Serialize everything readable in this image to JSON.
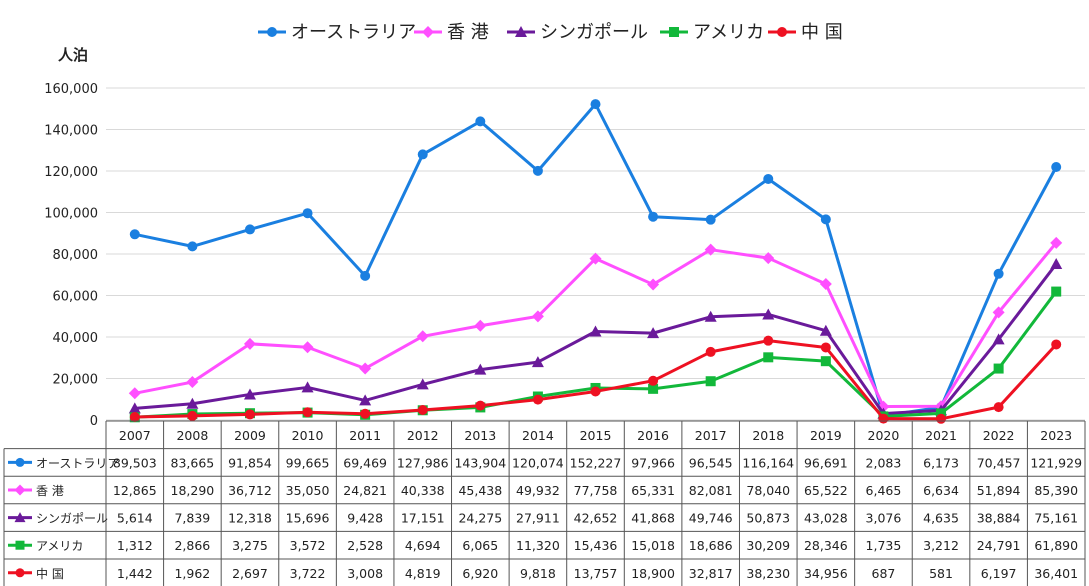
{
  "chart_data": {
    "type": "line",
    "unit_label": "人泊",
    "categories": [
      "2007",
      "2008",
      "2009",
      "2010",
      "2011",
      "2012",
      "2013",
      "2014",
      "2015",
      "2016",
      "2017",
      "2018",
      "2019",
      "2020",
      "2021",
      "2022",
      "2023"
    ],
    "ylim": [
      0,
      160000
    ],
    "yticks": [
      "0",
      "20,000",
      "40,000",
      "60,000",
      "80,000",
      "100,000",
      "120,000",
      "140,000",
      "160,000"
    ],
    "ytick_values": [
      0,
      20000,
      40000,
      60000,
      80000,
      100000,
      120000,
      140000,
      160000
    ],
    "grid": true,
    "legend_position": "top",
    "series": [
      {
        "name": "オーストラリア",
        "table_name": "オーストラリア",
        "color": "#1a7fe0",
        "marker": "circle",
        "values": [
          89503,
          83665,
          91854,
          99665,
          69469,
          127986,
          143904,
          120074,
          152227,
          97966,
          96545,
          116164,
          96691,
          2083,
          6173,
          70457,
          121929
        ],
        "labels": [
          "89,503",
          "83,665",
          "91,854",
          "99,665",
          "69,469",
          "127,986",
          "143,904",
          "120,074",
          "152,227",
          "97,966",
          "96,545",
          "116,164",
          "96,691",
          "2,083",
          "6,173",
          "70,457",
          "121,929"
        ]
      },
      {
        "name": "香 港",
        "table_name": "香 港",
        "color": "#ff4fff",
        "marker": "diamond",
        "values": [
          12865,
          18290,
          36712,
          35050,
          24821,
          40338,
          45438,
          49932,
          77758,
          65331,
          82081,
          78040,
          65522,
          6465,
          6634,
          51894,
          85390
        ],
        "labels": [
          "12,865",
          "18,290",
          "36,712",
          "35,050",
          "24,821",
          "40,338",
          "45,438",
          "49,932",
          "77,758",
          "65,331",
          "82,081",
          "78,040",
          "65,522",
          "6,465",
          "6,634",
          "51,894",
          "85,390"
        ]
      },
      {
        "name": "シンガポール",
        "table_name": "シンガポール",
        "color": "#6a1a9a",
        "marker": "triangle",
        "values": [
          5614,
          7839,
          12318,
          15696,
          9428,
          17151,
          24275,
          27911,
          42652,
          41868,
          49746,
          50873,
          43028,
          3076,
          4635,
          38884,
          75161
        ],
        "labels": [
          "5,614",
          "7,839",
          "12,318",
          "15,696",
          "9,428",
          "17,151",
          "24,275",
          "27,911",
          "42,652",
          "41,868",
          "49,746",
          "50,873",
          "43,028",
          "3,076",
          "4,635",
          "38,884",
          "75,161"
        ]
      },
      {
        "name": "アメリカ",
        "table_name": "アメリカ",
        "color": "#12b83a",
        "marker": "square",
        "values": [
          1312,
          2866,
          3275,
          3572,
          2528,
          4694,
          6065,
          11320,
          15436,
          15018,
          18686,
          30209,
          28346,
          1735,
          3212,
          24791,
          61890
        ],
        "labels": [
          "1,312",
          "2,866",
          "3,275",
          "3,572",
          "2,528",
          "4,694",
          "6,065",
          "11,320",
          "15,436",
          "15,018",
          "18,686",
          "30,209",
          "28,346",
          "1,735",
          "3,212",
          "24,791",
          "61,890"
        ]
      },
      {
        "name": "中 国",
        "table_name": "中 国",
        "color": "#ee1122",
        "marker": "circle",
        "values": [
          1442,
          1962,
          2697,
          3722,
          3008,
          4819,
          6920,
          9818,
          13757,
          18900,
          32817,
          38230,
          34956,
          687,
          581,
          6197,
          36401
        ],
        "labels": [
          "1,442",
          "1,962",
          "2,697",
          "3,722",
          "3,008",
          "4,819",
          "6,920",
          "9,818",
          "13,757",
          "18,900",
          "32,817",
          "38,230",
          "34,956",
          "687",
          "581",
          "6,197",
          "36,401"
        ]
      }
    ]
  }
}
